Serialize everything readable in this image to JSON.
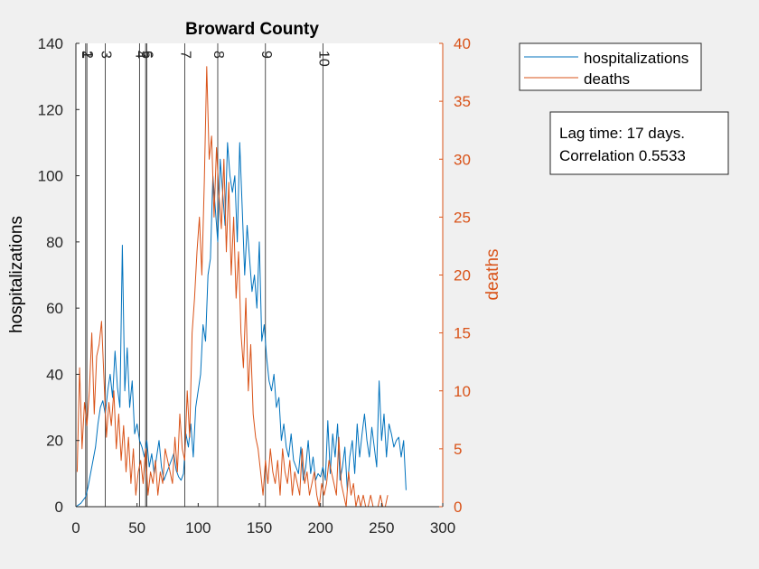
{
  "chart_data": {
    "type": "line",
    "title": "Broward County",
    "xlabel": "",
    "ylabel": "hospitalizations",
    "ylabel_right": "deaths",
    "xlim": [
      0,
      300
    ],
    "ylim": [
      0,
      140
    ],
    "ylim_right": [
      0,
      40
    ],
    "xticks": [
      0,
      50,
      100,
      150,
      200,
      250,
      300
    ],
    "yticks": [
      0,
      20,
      40,
      60,
      80,
      100,
      120,
      140
    ],
    "yticks_right": [
      0,
      5,
      10,
      15,
      20,
      25,
      30,
      35,
      40
    ],
    "vlines": [
      {
        "x": 8,
        "label": "1"
      },
      {
        "x": 9,
        "label": "2"
      },
      {
        "x": 24,
        "label": "3"
      },
      {
        "x": 52,
        "label": "4"
      },
      {
        "x": 57,
        "label": "5"
      },
      {
        "x": 58,
        "label": "6"
      },
      {
        "x": 89,
        "label": "7"
      },
      {
        "x": 116,
        "label": "8"
      },
      {
        "x": 155,
        "label": "9"
      },
      {
        "x": 202,
        "label": "10"
      }
    ],
    "series": [
      {
        "name": "hospitalizations",
        "axis": "left",
        "color": "#0072bd",
        "x": [
          0,
          4,
          8,
          10,
          12,
          16,
          18,
          20,
          22,
          24,
          26,
          28,
          30,
          32,
          34,
          36,
          38,
          40,
          42,
          44,
          46,
          48,
          50,
          52,
          54,
          56,
          58,
          60,
          62,
          64,
          66,
          68,
          70,
          72,
          74,
          76,
          78,
          80,
          82,
          84,
          86,
          88,
          90,
          92,
          94,
          96,
          98,
          100,
          102,
          104,
          106,
          108,
          110,
          112,
          114,
          116,
          118,
          120,
          122,
          124,
          126,
          128,
          130,
          132,
          134,
          136,
          138,
          140,
          142,
          144,
          146,
          148,
          150,
          152,
          154,
          156,
          158,
          160,
          162,
          164,
          166,
          168,
          170,
          172,
          174,
          176,
          178,
          180,
          182,
          184,
          186,
          188,
          190,
          192,
          194,
          196,
          198,
          200,
          202,
          204,
          206,
          208,
          210,
          212,
          214,
          216,
          218,
          220,
          222,
          224,
          226,
          228,
          230,
          232,
          234,
          236,
          238,
          240,
          242,
          244,
          246,
          248,
          250,
          252,
          254,
          256,
          258,
          260,
          262,
          264,
          266,
          268,
          270
        ],
        "values": [
          0,
          1,
          3,
          6,
          10,
          18,
          25,
          30,
          32,
          28,
          35,
          40,
          33,
          47,
          36,
          30,
          79,
          35,
          48,
          30,
          38,
          22,
          25,
          20,
          18,
          15,
          20,
          12,
          16,
          10,
          15,
          20,
          12,
          8,
          10,
          12,
          14,
          16,
          11,
          9,
          8,
          10,
          22,
          18,
          25,
          15,
          30,
          35,
          40,
          55,
          50,
          70,
          75,
          100,
          90,
          80,
          105,
          95,
          85,
          110,
          100,
          95,
          100,
          80,
          110,
          90,
          70,
          85,
          75,
          65,
          70,
          60,
          80,
          50,
          55,
          45,
          38,
          35,
          40,
          30,
          33,
          20,
          25,
          18,
          15,
          22,
          14,
          12,
          10,
          18,
          8,
          12,
          20,
          10,
          15,
          8,
          10,
          9,
          12,
          8,
          26,
          10,
          22,
          15,
          25,
          8,
          12,
          18,
          5,
          15,
          20,
          10,
          25,
          15,
          22,
          28,
          20,
          15,
          24,
          18,
          12,
          38,
          20,
          28,
          15,
          25,
          22,
          18,
          20,
          21,
          15,
          20,
          5
        ]
      },
      {
        "name": "deaths",
        "axis": "right",
        "color": "#d95319",
        "x": [
          1,
          3,
          5,
          7,
          9,
          11,
          13,
          15,
          17,
          19,
          21,
          23,
          25,
          27,
          29,
          31,
          33,
          35,
          37,
          39,
          41,
          43,
          45,
          47,
          49,
          51,
          53,
          55,
          57,
          59,
          61,
          63,
          65,
          67,
          69,
          71,
          73,
          75,
          77,
          79,
          81,
          83,
          85,
          87,
          89,
          91,
          93,
          95,
          97,
          99,
          101,
          103,
          105,
          107,
          109,
          111,
          113,
          115,
          117,
          119,
          121,
          123,
          125,
          127,
          129,
          131,
          133,
          135,
          137,
          139,
          141,
          143,
          145,
          147,
          149,
          151,
          153,
          155,
          157,
          159,
          161,
          163,
          165,
          167,
          169,
          171,
          173,
          175,
          177,
          179,
          181,
          183,
          185,
          187,
          189,
          191,
          193,
          195,
          197,
          199,
          201,
          203,
          205,
          207,
          209,
          211,
          213,
          215,
          217,
          219,
          221,
          223,
          225,
          227,
          229,
          231,
          233,
          235,
          237,
          239,
          241,
          243,
          245,
          247,
          249,
          251,
          253,
          255
        ],
        "values": [
          3,
          12,
          5,
          9,
          7,
          10,
          15,
          8,
          13,
          14,
          16,
          11,
          6,
          9,
          7,
          10,
          5,
          8,
          4,
          7,
          3,
          6,
          2,
          5,
          1,
          3,
          4,
          2,
          5,
          1,
          3,
          2,
          4,
          1,
          3,
          2,
          5,
          4,
          3,
          2,
          6,
          3,
          8,
          5,
          4,
          10,
          6,
          15,
          18,
          22,
          25,
          20,
          28,
          38,
          30,
          32,
          25,
          31,
          27,
          24,
          30,
          22,
          28,
          20,
          25,
          18,
          22,
          15,
          12,
          18,
          10,
          14,
          8,
          6,
          5,
          3,
          1,
          4,
          2,
          5,
          3,
          2,
          4,
          1,
          5,
          3,
          2,
          4,
          1,
          3,
          2,
          1,
          5,
          2,
          3,
          1,
          2,
          3,
          1,
          0,
          2,
          1,
          2,
          4,
          3,
          2,
          1,
          6,
          2,
          1,
          0,
          3,
          1,
          2,
          0,
          1,
          0,
          1,
          0,
          0,
          1,
          0,
          0,
          0,
          1,
          0,
          0,
          1
        ]
      }
    ],
    "legend": {
      "position": "top-right-outside",
      "entries": [
        "hospitalizations",
        "deaths"
      ]
    },
    "annotation": {
      "lines": [
        "Lag time: 17 days.",
        "Correlation 0.5533"
      ]
    },
    "colors": {
      "axis_left": "#000000",
      "axis_right": "#d95319",
      "figure_bg": "#f0f0f0",
      "plot_bg": "#ffffff",
      "vline": "#262626"
    }
  }
}
